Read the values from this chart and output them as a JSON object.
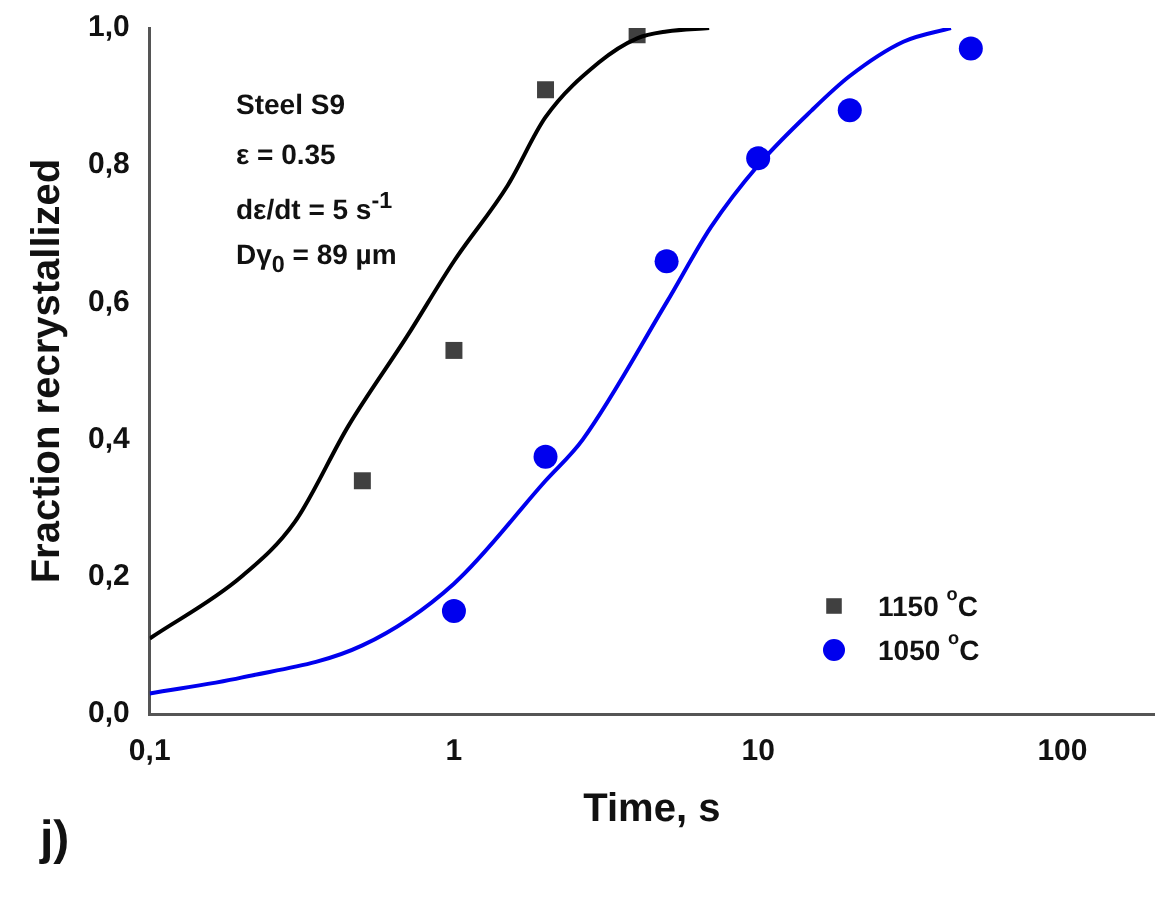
{
  "chart_data": {
    "type": "scatter",
    "xlabel": "Time, s",
    "ylabel": "Fraction recrystallized",
    "log": "x",
    "xlim": [
      0.1,
      200
    ],
    "xticks": [
      {
        "value": 0.1,
        "label": "0,1"
      },
      1,
      10,
      100
    ],
    "ylim": [
      0,
      1.0
    ],
    "yticks": [
      {
        "value": 0,
        "label": "0,0"
      },
      {
        "value": 0.2,
        "label": "0,2"
      },
      {
        "value": 0.4,
        "label": "0,4"
      },
      {
        "value": 0.6,
        "label": "0,6"
      },
      {
        "value": 0.8,
        "label": "0,8"
      },
      {
        "value": 1.0,
        "label": "1,0"
      }
    ],
    "grid": false,
    "legend": "bottom right",
    "annotations": [
      "Steel S9",
      "ε = 0.35",
      "dε/dt = 5 s$^{-1}$",
      "Dγ$_{0}$ = 89 µm",
      "j)"
    ],
    "series": [
      {
        "type": "line",
        "color": "#000000",
        "marker": "none",
        "x": [
          0.1,
          0.2,
          0.3,
          0.45,
          0.7,
          1,
          1.5,
          2,
          3,
          4,
          5,
          6.9
        ],
        "values": [
          0.11,
          0.2,
          0.28,
          0.42,
          0.55,
          0.66,
          0.77,
          0.87,
          0.95,
          0.985,
          0.995,
          1.0
        ]
      },
      {
        "type": "line",
        "color": "#0000ee",
        "marker": "none",
        "x": [
          0.1,
          0.2,
          0.5,
          1,
          2,
          2.65,
          5,
          7,
          10,
          15,
          20,
          30,
          43
        ],
        "values": [
          0.03,
          0.053,
          0.1,
          0.19,
          0.34,
          0.4,
          0.6,
          0.71,
          0.8,
          0.88,
          0.93,
          0.98,
          1.0
        ]
      },
      {
        "name": "1150 $^{o}$C",
        "color": "#404040",
        "marker": "square",
        "x": [
          0.5,
          1,
          2,
          4
        ],
        "values": [
          0.34,
          0.53,
          0.91,
          0.99
        ]
      },
      {
        "name": "1050 $^{o}$C",
        "color": "#0000ee",
        "marker": "circle",
        "x": [
          1,
          2,
          5,
          10,
          20,
          50
        ],
        "values": [
          0.15,
          0.375,
          0.66,
          0.81,
          0.88,
          0.97
        ]
      }
    ]
  }
}
